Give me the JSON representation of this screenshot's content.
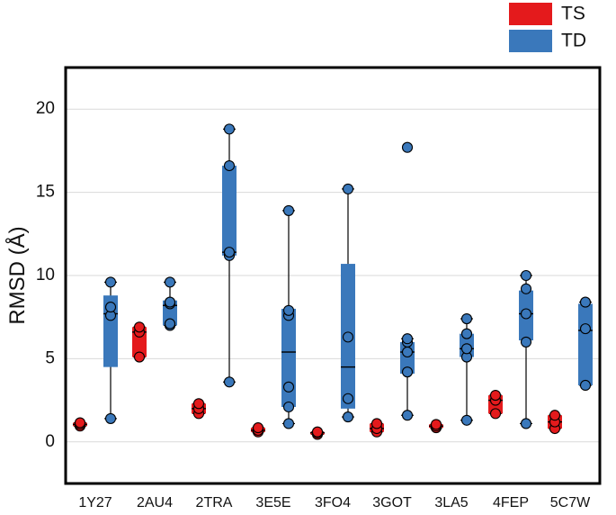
{
  "chart_data": {
    "type": "box",
    "ylabel": "RMSD (Å)",
    "ylim": [
      -2.5,
      22.5
    ],
    "yticks": [
      0,
      5,
      10,
      15,
      20
    ],
    "grid": "horizontal",
    "legend_position": "top-right",
    "categories": [
      "1Y27",
      "2AU4",
      "2TRA",
      "3E5E",
      "3FO4",
      "3GOT",
      "3LA5",
      "4FEP",
      "5C7W"
    ],
    "series": [
      {
        "name": "TS",
        "color": "#e41a1c",
        "boxes": [
          {
            "category": "1Y27",
            "q1": 0.95,
            "median": 1.05,
            "q3": 1.15,
            "whisker_low": 0.95,
            "whisker_high": 1.15,
            "points": [
              0.95,
              1.05,
              1.15
            ]
          },
          {
            "category": "2AU4",
            "q1": 5.1,
            "median": 6.6,
            "q3": 6.9,
            "whisker_low": 5.1,
            "whisker_high": 6.9,
            "points": [
              5.1,
              6.6,
              6.9
            ]
          },
          {
            "category": "2TRA",
            "q1": 1.7,
            "median": 2.0,
            "q3": 2.3,
            "whisker_low": 1.7,
            "whisker_high": 2.3,
            "points": [
              1.7,
              2.0,
              2.3
            ]
          },
          {
            "category": "3E5E",
            "q1": 0.6,
            "median": 0.7,
            "q3": 0.85,
            "whisker_low": 0.6,
            "whisker_high": 0.85,
            "points": [
              0.6,
              0.7,
              0.85
            ]
          },
          {
            "category": "3FO4",
            "q1": 0.45,
            "median": 0.55,
            "q3": 0.6,
            "whisker_low": 0.45,
            "whisker_high": 0.6,
            "points": [
              0.45,
              0.55,
              0.6
            ]
          },
          {
            "category": "3GOT",
            "q1": 0.6,
            "median": 0.8,
            "q3": 1.1,
            "whisker_low": 0.6,
            "whisker_high": 1.1,
            "points": [
              0.6,
              0.8,
              1.1
            ]
          },
          {
            "category": "3LA5",
            "q1": 0.85,
            "median": 0.95,
            "q3": 1.05,
            "whisker_low": 0.85,
            "whisker_high": 1.05,
            "points": [
              0.85,
              0.95,
              1.05
            ]
          },
          {
            "category": "4FEP",
            "q1": 1.7,
            "median": 2.5,
            "q3": 2.8,
            "whisker_low": 1.7,
            "whisker_high": 2.8,
            "points": [
              1.7,
              2.5,
              2.8
            ]
          },
          {
            "category": "5C7W",
            "q1": 0.8,
            "median": 1.2,
            "q3": 1.6,
            "whisker_low": 0.8,
            "whisker_high": 1.6,
            "points": [
              0.8,
              1.2,
              1.6
            ]
          }
        ]
      },
      {
        "name": "TD",
        "color": "#3a78bb",
        "boxes": [
          {
            "category": "1Y27",
            "q1": 4.5,
            "median": 7.7,
            "q3": 8.8,
            "whisker_low": 1.4,
            "whisker_high": 9.6,
            "points": [
              1.4,
              7.6,
              8.1,
              9.6
            ]
          },
          {
            "category": "2AU4",
            "q1": 7.0,
            "median": 8.2,
            "q3": 8.5,
            "whisker_low": 7.0,
            "whisker_high": 9.6,
            "points": [
              7.0,
              7.1,
              8.3,
              8.4,
              9.6
            ]
          },
          {
            "category": "2TRA",
            "q1": 11.2,
            "median": 11.4,
            "q3": 16.6,
            "whisker_low": 3.6,
            "whisker_high": 18.8,
            "points": [
              3.6,
              11.2,
              11.4,
              16.6,
              18.8
            ]
          },
          {
            "category": "3E5E",
            "q1": 2.1,
            "median": 5.4,
            "q3": 8.0,
            "whisker_low": 1.1,
            "whisker_high": 13.9,
            "points": [
              1.1,
              2.1,
              3.3,
              7.6,
              7.9,
              13.9
            ]
          },
          {
            "category": "3FO4",
            "q1": 2.0,
            "median": 4.5,
            "q3": 10.7,
            "whisker_low": 1.5,
            "whisker_high": 15.2,
            "points": [
              1.5,
              2.6,
              6.3,
              15.2
            ]
          },
          {
            "category": "3GOT",
            "q1": 4.1,
            "median": 5.4,
            "q3": 6.0,
            "whisker_low": 1.6,
            "whisker_high": 6.2,
            "points": [
              1.6,
              4.2,
              5.4,
              6.0,
              6.2,
              17.7
            ]
          },
          {
            "category": "3LA5",
            "q1": 5.1,
            "median": 5.6,
            "q3": 6.5,
            "whisker_low": 1.3,
            "whisker_high": 7.4,
            "points": [
              1.3,
              5.1,
              5.6,
              6.5,
              7.4
            ]
          },
          {
            "category": "4FEP",
            "q1": 6.1,
            "median": 7.7,
            "q3": 9.1,
            "whisker_low": 1.1,
            "whisker_high": 10.0,
            "points": [
              1.1,
              6.0,
              7.7,
              9.2,
              10.0
            ]
          },
          {
            "category": "5C7W",
            "q1": 3.4,
            "median": 6.7,
            "q3": 8.3,
            "whisker_low": 3.4,
            "whisker_high": 8.4,
            "points": [
              3.4,
              6.8,
              8.4
            ]
          }
        ]
      }
    ]
  }
}
